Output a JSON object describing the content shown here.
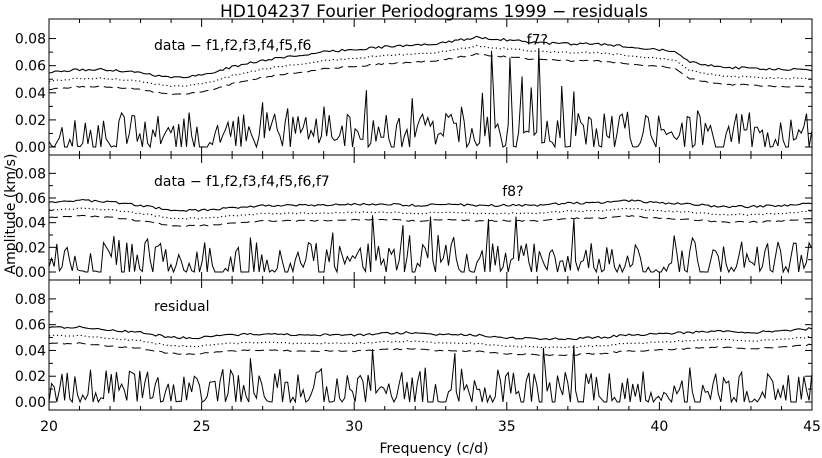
{
  "title": "HD104237 Fourier Periodograms 1999 − residuals",
  "xlabel": "Frequency (c/d)",
  "ylabel": "Amplitude (km/s)",
  "chart_data": [
    {
      "type": "line",
      "panel_label": "data − f1,f2,f3,f4,f5,f6",
      "xlim": [
        20,
        45
      ],
      "ylim": [
        0,
        0.09
      ],
      "x_ticks": [
        20,
        25,
        30,
        35,
        40,
        45
      ],
      "y_ticks": [
        "0.00",
        "0.02",
        "0.04",
        "0.06",
        "0.08"
      ],
      "annotations": [
        {
          "text": "f7?",
          "x": 36.0,
          "y": 0.074
        }
      ],
      "envelope": {
        "x": [
          20,
          21,
          22,
          23,
          24,
          25,
          26,
          27,
          28,
          29,
          30,
          31,
          32,
          33,
          34,
          35,
          36,
          37,
          38,
          39,
          40,
          40.5,
          41,
          42,
          43,
          44,
          45
        ],
        "solid": [
          0.055,
          0.057,
          0.057,
          0.055,
          0.051,
          0.053,
          0.059,
          0.064,
          0.067,
          0.07,
          0.072,
          0.074,
          0.075,
          0.077,
          0.081,
          0.079,
          0.077,
          0.076,
          0.076,
          0.074,
          0.072,
          0.071,
          0.063,
          0.059,
          0.058,
          0.057,
          0.057
        ]
      },
      "peaks": [
        [
          34.5,
          0.071
        ],
        [
          35.1,
          0.066
        ],
        [
          35.5,
          0.052
        ],
        [
          35.8,
          0.044
        ],
        [
          36.05,
          0.073
        ],
        [
          36.8,
          0.045
        ],
        [
          37.2,
          0.041
        ],
        [
          34.2,
          0.04
        ],
        [
          30.4,
          0.042
        ],
        [
          31.9,
          0.036
        ],
        [
          27.0,
          0.033
        ]
      ],
      "seed": 11
    },
    {
      "type": "line",
      "panel_label": "data − f1,f2,f3,f4,f5,f6,f7",
      "xlim": [
        20,
        45
      ],
      "ylim": [
        0,
        0.09
      ],
      "x_ticks": [
        20,
        25,
        30,
        35,
        40,
        45
      ],
      "y_ticks": [
        "0.00",
        "0.02",
        "0.04",
        "0.06",
        "0.08"
      ],
      "annotations": [
        {
          "text": "f8?",
          "x": 35.2,
          "y": 0.06
        }
      ],
      "envelope": {
        "x": [
          20,
          21,
          22,
          23,
          24,
          25,
          26,
          27,
          28,
          29,
          30,
          31,
          32,
          33,
          34,
          35,
          36,
          37,
          38,
          39,
          40,
          41,
          42,
          43,
          44,
          45
        ],
        "solid": [
          0.057,
          0.058,
          0.057,
          0.054,
          0.05,
          0.05,
          0.052,
          0.054,
          0.054,
          0.054,
          0.055,
          0.055,
          0.054,
          0.055,
          0.054,
          0.054,
          0.054,
          0.056,
          0.056,
          0.058,
          0.056,
          0.055,
          0.053,
          0.053,
          0.054,
          0.056
        ]
      },
      "peaks": [
        [
          35.3,
          0.045
        ],
        [
          34.4,
          0.043
        ],
        [
          30.6,
          0.046
        ],
        [
          32.5,
          0.045
        ],
        [
          37.2,
          0.043
        ],
        [
          31.6,
          0.038
        ],
        [
          29.3,
          0.032
        ],
        [
          26.6,
          0.028
        ]
      ],
      "seed": 23
    },
    {
      "type": "line",
      "panel_label": "residual",
      "xlim": [
        20,
        45
      ],
      "ylim": [
        0,
        0.09
      ],
      "x_ticks": [
        20,
        25,
        30,
        35,
        40,
        45
      ],
      "y_ticks": [
        "0.00",
        "0.02",
        "0.04",
        "0.06",
        "0.08"
      ],
      "annotations": [],
      "envelope": {
        "x": [
          20,
          21,
          22,
          23,
          24,
          25,
          26,
          27,
          28,
          29,
          30,
          31,
          32,
          33,
          34,
          35,
          36,
          37,
          38,
          39,
          40,
          41,
          42,
          43,
          44,
          45
        ],
        "solid": [
          0.058,
          0.058,
          0.056,
          0.054,
          0.05,
          0.05,
          0.052,
          0.053,
          0.052,
          0.052,
          0.052,
          0.053,
          0.054,
          0.052,
          0.052,
          0.05,
          0.049,
          0.049,
          0.05,
          0.052,
          0.053,
          0.054,
          0.055,
          0.054,
          0.055,
          0.057
        ]
      },
      "peaks": [
        [
          36.2,
          0.042
        ],
        [
          37.2,
          0.044
        ],
        [
          30.6,
          0.041
        ],
        [
          33.3,
          0.038
        ],
        [
          26.6,
          0.034
        ]
      ],
      "seed": 37
    }
  ]
}
